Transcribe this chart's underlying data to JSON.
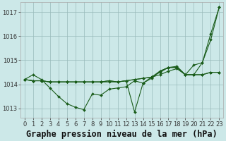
{
  "title": "Graphe pression niveau de la mer (hPa)",
  "bg_color": "#cce8e8",
  "grid_color": "#99bbbb",
  "line_color": "#1a5c1a",
  "xlim": [
    -0.5,
    23.5
  ],
  "ylim": [
    1012.6,
    1017.4
  ],
  "yticks": [
    1013,
    1014,
    1015,
    1016,
    1017
  ],
  "xticks": [
    0,
    1,
    2,
    3,
    4,
    5,
    6,
    7,
    8,
    9,
    10,
    11,
    12,
    13,
    14,
    15,
    16,
    17,
    18,
    19,
    20,
    21,
    22,
    23
  ],
  "series": [
    [
      1014.2,
      1014.4,
      1014.2,
      1013.85,
      1013.5,
      1013.2,
      1013.05,
      1012.95,
      1013.6,
      1013.55,
      1013.8,
      1013.85,
      1013.9,
      1014.15,
      1014.05,
      1014.3,
      1014.5,
      1014.7,
      1014.75,
      1014.4,
      1014.8,
      1014.9,
      1016.1,
      1017.2
    ],
    [
      1014.2,
      1014.15,
      1014.15,
      1014.1,
      1014.1,
      1014.1,
      1014.1,
      1014.1,
      1014.1,
      1014.1,
      1014.1,
      1014.1,
      1014.15,
      1014.2,
      1014.25,
      1014.3,
      1014.4,
      1014.55,
      1014.65,
      1014.4,
      1014.4,
      1014.9,
      1015.85,
      1017.2
    ],
    [
      1014.2,
      1014.15,
      1014.15,
      1014.1,
      1014.1,
      1014.1,
      1014.1,
      1014.1,
      1014.1,
      1014.1,
      1014.15,
      1014.1,
      1014.15,
      1014.2,
      1014.25,
      1014.3,
      1014.55,
      1014.7,
      1014.7,
      1014.4,
      1014.4,
      1014.4,
      1014.5,
      1014.5
    ],
    [
      1014.2,
      1014.15,
      1014.15,
      1014.1,
      1014.1,
      1014.1,
      1014.1,
      1014.1,
      1014.1,
      1014.1,
      1014.15,
      1014.1,
      1014.15,
      1012.85,
      1014.05,
      1014.25,
      1014.55,
      1014.7,
      1014.7,
      1014.4,
      1014.4,
      1014.4,
      1014.5,
      1014.5
    ]
  ],
  "title_fontsize": 8.5,
  "tick_fontsize": 6
}
